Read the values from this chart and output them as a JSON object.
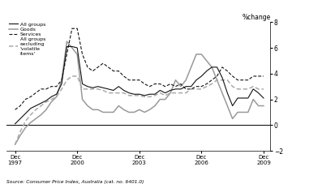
{
  "ylabel_right": "%change",
  "source": "Source: Consumer Price Index, Australia (cat. no. 6401.0)",
  "ylim": [
    -2,
    8
  ],
  "yticks": [
    -2,
    0,
    2,
    4,
    6,
    8
  ],
  "xtick_positions": [
    1997.917,
    2000.917,
    2003.917,
    2006.917,
    2009.917
  ],
  "xtick_labels": [
    "Dec\n1997",
    "Dec\n2000",
    "Dec\n2003",
    "Dec\n2006",
    "Dec\n2009"
  ],
  "quarters": [
    1997.917,
    1998.167,
    1998.417,
    1998.667,
    1998.917,
    1999.167,
    1999.417,
    1999.667,
    1999.917,
    2000.167,
    2000.417,
    2000.667,
    2000.917,
    2001.167,
    2001.417,
    2001.667,
    2001.917,
    2002.167,
    2002.417,
    2002.667,
    2002.917,
    2003.167,
    2003.417,
    2003.667,
    2003.917,
    2004.167,
    2004.417,
    2004.667,
    2004.917,
    2005.167,
    2005.417,
    2005.667,
    2005.917,
    2006.167,
    2006.417,
    2006.667,
    2006.917,
    2007.167,
    2007.417,
    2007.667,
    2007.917,
    2008.167,
    2008.417,
    2008.667,
    2008.917,
    2009.167,
    2009.417,
    2009.667,
    2009.917
  ],
  "all_groups_data": [
    0.1,
    0.5,
    0.9,
    1.3,
    1.5,
    1.7,
    1.9,
    2.2,
    2.4,
    3.2,
    6.1,
    6.1,
    6.0,
    3.2,
    3.0,
    2.9,
    3.0,
    2.9,
    2.8,
    2.7,
    3.0,
    2.7,
    2.5,
    2.4,
    2.4,
    2.3,
    2.4,
    2.4,
    2.7,
    2.5,
    2.7,
    2.8,
    2.8,
    3.0,
    3.0,
    3.5,
    3.8,
    4.2,
    4.5,
    4.5,
    3.7,
    2.5,
    1.5,
    2.1,
    2.1,
    2.1,
    2.8,
    2.5,
    2.1
  ],
  "goods_data": [
    -1.5,
    -0.8,
    -0.2,
    0.2,
    0.5,
    0.8,
    1.2,
    1.8,
    2.2,
    3.5,
    6.5,
    6.0,
    5.5,
    2.0,
    1.5,
    1.2,
    1.2,
    1.0,
    1.0,
    1.0,
    1.5,
    1.2,
    1.0,
    1.0,
    1.2,
    1.0,
    1.2,
    1.5,
    2.0,
    2.0,
    2.5,
    3.5,
    3.0,
    3.5,
    4.5,
    5.5,
    5.5,
    5.0,
    4.5,
    3.5,
    2.5,
    1.5,
    0.5,
    1.0,
    1.0,
    1.0,
    2.0,
    1.5,
    1.5
  ],
  "services_data": [
    1.2,
    1.5,
    2.0,
    2.2,
    2.5,
    2.8,
    2.8,
    3.0,
    3.0,
    3.5,
    5.5,
    7.5,
    7.5,
    5.5,
    4.5,
    4.2,
    4.5,
    4.8,
    4.5,
    4.2,
    4.2,
    3.8,
    3.5,
    3.5,
    3.5,
    3.2,
    3.0,
    3.2,
    3.2,
    3.0,
    3.2,
    3.0,
    3.2,
    2.8,
    2.8,
    3.0,
    3.0,
    3.2,
    3.5,
    3.8,
    4.5,
    4.2,
    3.8,
    3.5,
    3.5,
    3.5,
    3.8,
    3.8,
    3.8
  ],
  "excl_volatile_data": [
    -1.5,
    -0.5,
    0.3,
    0.8,
    1.2,
    1.5,
    1.8,
    2.0,
    2.2,
    2.8,
    3.5,
    3.8,
    3.8,
    2.8,
    2.8,
    2.8,
    2.8,
    2.7,
    2.5,
    2.5,
    2.5,
    2.5,
    2.3,
    2.3,
    2.3,
    2.2,
    2.2,
    2.3,
    2.5,
    2.3,
    2.5,
    2.5,
    2.5,
    2.5,
    2.8,
    2.8,
    2.8,
    3.0,
    3.2,
    3.5,
    3.5,
    3.5,
    3.0,
    2.8,
    2.8,
    2.8,
    3.0,
    2.8,
    2.8
  ]
}
